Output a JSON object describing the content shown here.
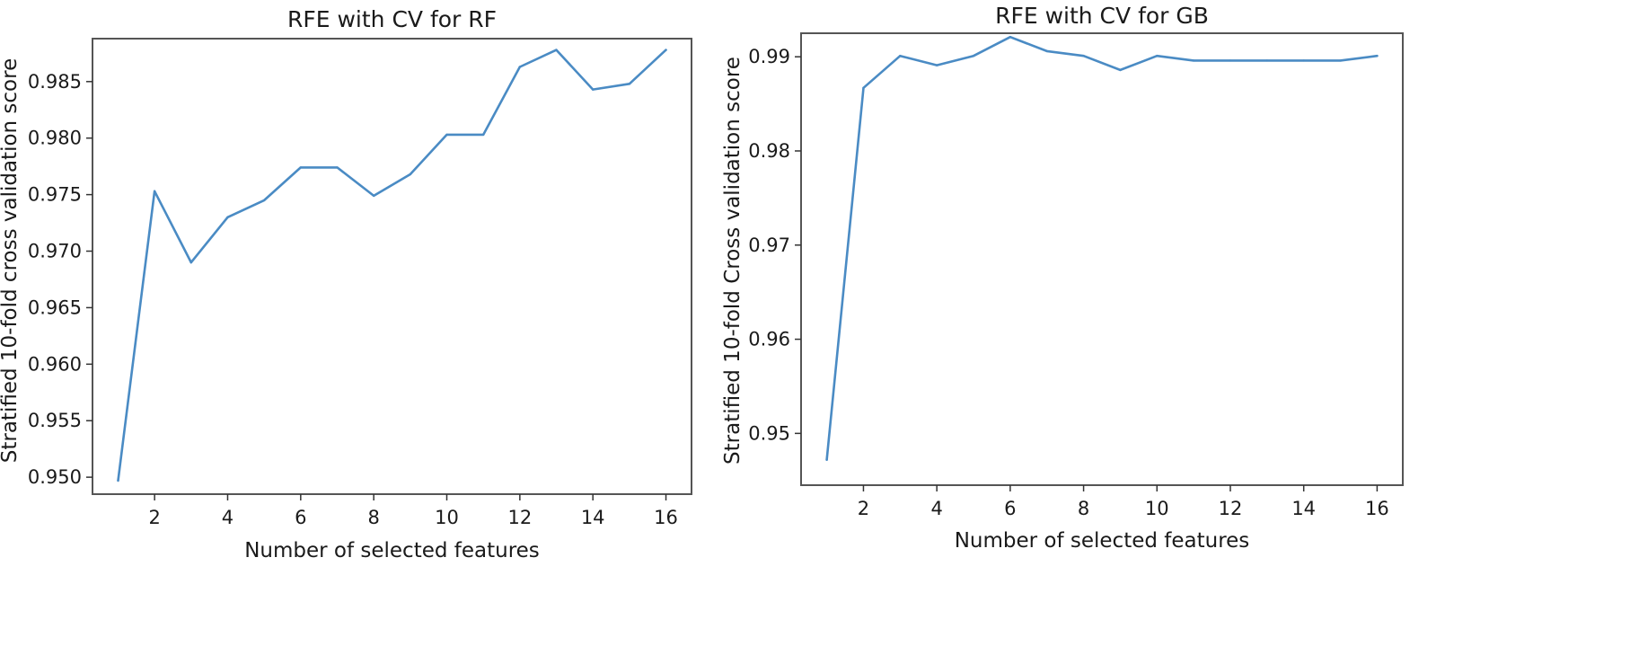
{
  "chart_data": [
    {
      "type": "line",
      "title": "RFE with CV for RF",
      "xlabel": "Number of selected features",
      "ylabel": "Stratified 10-fold cross validation score",
      "xlim": [
        0.3,
        16.7
      ],
      "ylim": [
        0.9485,
        0.9888
      ],
      "xticks": [
        2,
        4,
        6,
        8,
        10,
        12,
        14,
        16
      ],
      "xtick_labels": [
        "2",
        "4",
        "6",
        "8",
        "10",
        "12",
        "14",
        "16"
      ],
      "yticks": [
        0.95,
        0.955,
        0.96,
        0.965,
        0.97,
        0.975,
        0.98,
        0.985
      ],
      "ytick_labels": [
        "0.950",
        "0.955",
        "0.960",
        "0.965",
        "0.970",
        "0.975",
        "0.980",
        "0.985"
      ],
      "grid": false,
      "series": [
        {
          "color": "#4a8bc4",
          "x": [
            1,
            2,
            3,
            4,
            5,
            6,
            7,
            8,
            9,
            10,
            11,
            12,
            13,
            14,
            15,
            16
          ],
          "y": [
            0.9497,
            0.9753,
            0.969,
            0.973,
            0.9745,
            0.9774,
            0.9774,
            0.9749,
            0.9768,
            0.9803,
            0.9803,
            0.9863,
            0.9878,
            0.9843,
            0.9848,
            0.9878
          ]
        }
      ]
    },
    {
      "type": "line",
      "title": "RFE with CV for GB",
      "xlabel": "Number of selected features",
      "ylabel": "Stratified 10-fold Cross validation score",
      "xlim": [
        0.3,
        16.7
      ],
      "ylim": [
        0.9445,
        0.9925
      ],
      "xticks": [
        2,
        4,
        6,
        8,
        10,
        12,
        14,
        16
      ],
      "xtick_labels": [
        "2",
        "4",
        "6",
        "8",
        "10",
        "12",
        "14",
        "16"
      ],
      "yticks": [
        0.95,
        0.96,
        0.97,
        0.98,
        0.99
      ],
      "ytick_labels": [
        "0.95",
        "0.96",
        "0.97",
        "0.98",
        "0.99"
      ],
      "grid": false,
      "series": [
        {
          "color": "#4a8bc4",
          "x": [
            1,
            2,
            3,
            4,
            5,
            6,
            7,
            8,
            9,
            10,
            11,
            12,
            13,
            14,
            15,
            16
          ],
          "y": [
            0.9472,
            0.9867,
            0.9901,
            0.9891,
            0.9901,
            0.9921,
            0.9906,
            0.9901,
            0.9886,
            0.9901,
            0.9896,
            0.9896,
            0.9896,
            0.9896,
            0.9896,
            0.9901
          ]
        }
      ]
    }
  ]
}
